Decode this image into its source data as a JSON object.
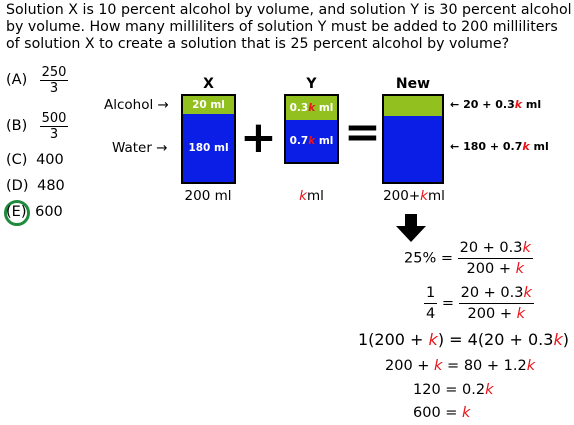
{
  "question": "Solution X is 10 percent alcohol by volume, and solution Y is 30 percent alcohol by volume.  How many milliliters of solution Y must be added to 200 milliliters of solution X to create a solution that is 25 percent alcohol by volume?",
  "choices": {
    "a": {
      "label": "(A)",
      "num": "250",
      "den": "3"
    },
    "b": {
      "label": "(B)",
      "num": "500",
      "den": "3"
    },
    "c": {
      "label": "(C)",
      "value": "400"
    },
    "d": {
      "label": "(D)",
      "value": "480"
    },
    "e": {
      "label": "(E)",
      "value": "600"
    }
  },
  "diagram": {
    "row_alcohol": "Alcohol",
    "row_water": "Water",
    "plus": "+",
    "equals": "=",
    "x": {
      "title": "X",
      "alcohol": "20 ml",
      "water": "180 ml",
      "volume": "200 ml"
    },
    "y": {
      "title": "Y",
      "alcohol_num": "0.3",
      "water_num": "0.7",
      "unit": " ml",
      "k": "k",
      "volume_unit": "ml"
    },
    "new": {
      "title": "New",
      "alcohol_prefix": "20 + 0.3",
      "water_prefix": "180 + 0.7",
      "unit": " ml",
      "k": "k",
      "volume_prefix": "200+",
      "volume_unit": "ml"
    }
  },
  "solution": {
    "step1": {
      "lhs": "25% =",
      "num": "20 + 0.3",
      "den": "200 + "
    },
    "step2": {
      "lhs_num": "1",
      "lhs_den": "4",
      "eq": "=",
      "num": "20 + 0.3",
      "den": "200 + "
    },
    "step3": {
      "a": "1(200 + ",
      "b": ") = 4(20 + 0.3",
      "c": ")"
    },
    "step4": {
      "a": "200 + ",
      "b": " = 80 + 1.2"
    },
    "step5": {
      "a": "120 = 0.2"
    },
    "step6": {
      "a": "600 = "
    },
    "k": "k"
  },
  "colors": {
    "alcohol": "#92c01e",
    "water": "#0a1ee6",
    "highlight": "#e8161b",
    "circle": "#1e8a3c"
  }
}
